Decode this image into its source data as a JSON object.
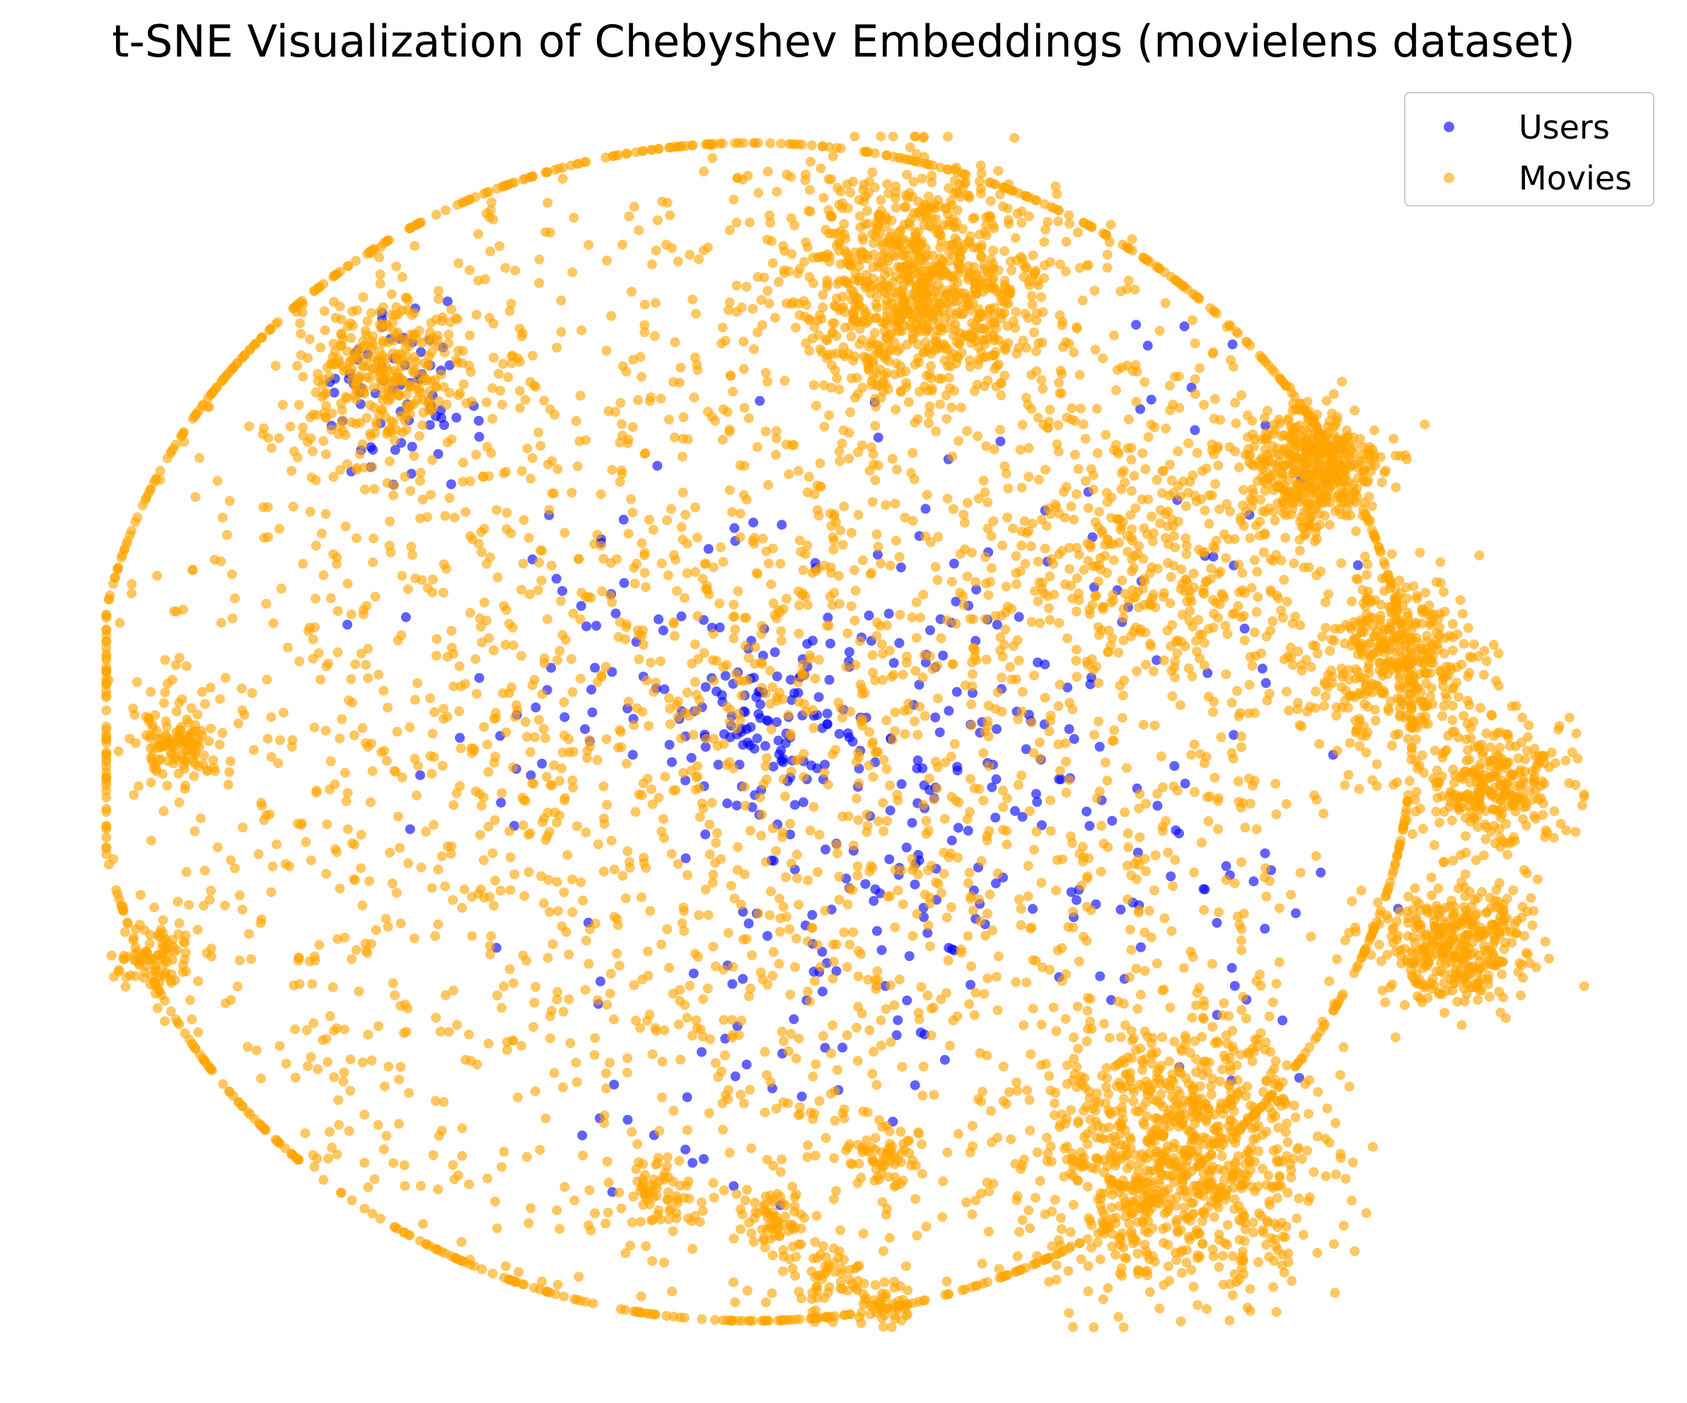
{
  "chart_data": {
    "type": "scatter",
    "title": "t-SNE Visualization of Chebyshev Embeddings (movielens dataset)",
    "xlabel": "",
    "ylabel": "",
    "axes_visible": false,
    "grid": false,
    "legend_position": "top-right",
    "xlim": [
      -105,
      105
    ],
    "ylim": [
      -95,
      95
    ],
    "series": [
      {
        "name": "Users",
        "color": "#0000ff",
        "approx_point_count": 520,
        "clusters": [
          {
            "cx": -62,
            "cy": 53,
            "spread": 6,
            "count": 70
          },
          {
            "cx": -11,
            "cy": 1,
            "spread": 7,
            "count": 90
          },
          {
            "cx": -2,
            "cy": 7,
            "spread": 16,
            "count": 110
          },
          {
            "cx": 20,
            "cy": -12,
            "spread": 12,
            "count": 60
          },
          {
            "cx": 2,
            "cy": -33,
            "spread": 10,
            "count": 45
          },
          {
            "cx": -38,
            "cy": 8,
            "spread": 15,
            "count": 45
          },
          {
            "cx": 42,
            "cy": 30,
            "spread": 18,
            "count": 40
          },
          {
            "cx": -19,
            "cy": -48,
            "spread": 14,
            "count": 30
          },
          {
            "cx": 49,
            "cy": -30,
            "spread": 12,
            "count": 30
          }
        ]
      },
      {
        "name": "Movies",
        "color": "#ffa500",
        "approx_point_count": 7800,
        "clusters": [
          {
            "cx": 11,
            "cy": 70,
            "spread": 9,
            "count": 900
          },
          {
            "cx": 44,
            "cy": 26,
            "spread": 11,
            "count": 320
          },
          {
            "cx": -64,
            "cy": 56,
            "spread": 6,
            "count": 300
          },
          {
            "cx": 65,
            "cy": 41,
            "spread": 5,
            "count": 450
          },
          {
            "cx": 77,
            "cy": 11,
            "spread": 6,
            "count": 400
          },
          {
            "cx": 90,
            "cy": -8,
            "spread": 5,
            "count": 300
          },
          {
            "cx": 85,
            "cy": -33,
            "spread": 5,
            "count": 380
          },
          {
            "cx": 47,
            "cy": -66,
            "spread": 10,
            "count": 900
          },
          {
            "cx": -93,
            "cy": -2,
            "spread": 3,
            "count": 120
          },
          {
            "cx": -96,
            "cy": -35,
            "spread": 3,
            "count": 100
          },
          {
            "cx": -10,
            "cy": -76,
            "spread": 2.5,
            "count": 60
          },
          {
            "cx": -26,
            "cy": -73,
            "spread": 2.5,
            "count": 60
          },
          {
            "cx": 5,
            "cy": -66,
            "spread": 2.5,
            "count": 60
          },
          {
            "cx": -2,
            "cy": -85,
            "spread": 3,
            "count": 60
          },
          {
            "cx": 5,
            "cy": -89,
            "spread": 2,
            "count": 40
          },
          {
            "cx": -13,
            "cy": 0,
            "spread": 55,
            "count": 3350
          }
        ]
      }
    ]
  }
}
